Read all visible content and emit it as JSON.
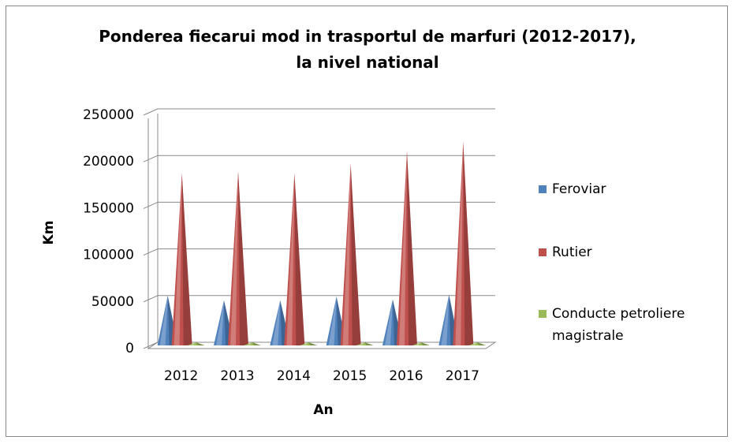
{
  "chart_data": {
    "type": "bar",
    "title": "Ponderea fiecarui mod in trasportul de marfuri (2012-2017),\nla nivel national",
    "x_label": "An",
    "y_label": "Km",
    "categories": [
      "2012",
      "2013",
      "2014",
      "2015",
      "2016",
      "2017"
    ],
    "series": [
      {
        "name": "Feroviar",
        "color": "#4f81bd",
        "values": [
          55000,
          50000,
          50000,
          54000,
          51000,
          56000
        ]
      },
      {
        "name": "Rutier",
        "color": "#c0504d",
        "values": [
          186000,
          188000,
          186000,
          196000,
          210000,
          220000
        ]
      },
      {
        "name": "Conducte petroliere\nmagistrale",
        "color": "#9bbb59",
        "values": [
          5000,
          5000,
          5000,
          5000,
          5000,
          5000
        ]
      }
    ],
    "ylim": [
      0,
      250000
    ],
    "yticks": [
      0,
      50000,
      100000,
      150000,
      200000,
      250000
    ],
    "grid": true,
    "legend": "right"
  }
}
